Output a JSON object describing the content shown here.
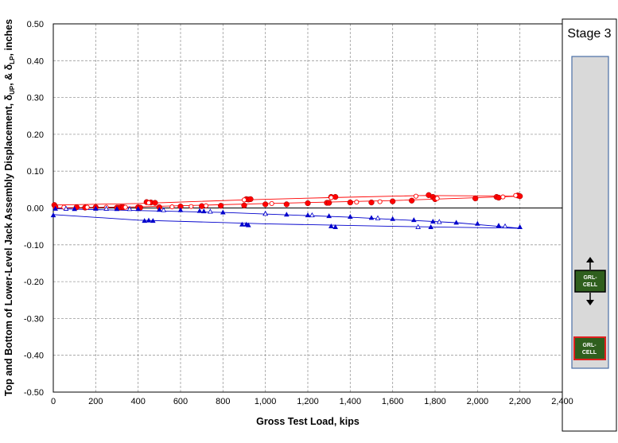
{
  "chart_data": {
    "type": "scatter",
    "xlabel": "Gross Test Load, kips",
    "ylabel_parts": {
      "pre": "Top and Bottom of Lower-Level Jack Assembly Displacement, δ",
      "sub1": "UP",
      "mid": ", & δ",
      "sub2": "LP",
      "post": ", inches"
    },
    "xlim": [
      0,
      2400
    ],
    "ylim": [
      -0.5,
      0.5
    ],
    "x_ticks": [
      0,
      200,
      400,
      600,
      800,
      1000,
      1200,
      1400,
      1600,
      1800,
      2000,
      2200,
      2400
    ],
    "x_tick_labels": [
      "0",
      "200",
      "400",
      "600",
      "800",
      "1,000",
      "1,200",
      "1,400",
      "1,600",
      "1,800",
      "2,000",
      "2,200",
      "2,400"
    ],
    "y_ticks": [
      0.5,
      0.4,
      0.3,
      0.2,
      0.1,
      0.0,
      -0.1,
      -0.2,
      -0.3,
      -0.4,
      -0.5
    ],
    "y_tick_labels": [
      "0.50",
      "0.40",
      "0.30",
      "0.20",
      "0.10",
      "0.00",
      "-0.10",
      "-0.20",
      "-0.30",
      "-0.40",
      "-0.50"
    ],
    "grid": true,
    "series": [
      {
        "color": "#ff0000",
        "marker": "circle-filled",
        "trend": [
          [
            0,
            0.0
          ],
          [
            400,
            0.003
          ],
          [
            1000,
            0.012
          ],
          [
            1600,
            0.02
          ],
          [
            2200,
            0.032
          ]
        ],
        "points": [
          [
            5,
            0.008
          ],
          [
            10,
            0.003
          ],
          [
            110,
            0.002
          ],
          [
            150,
            0.001
          ],
          [
            200,
            0.002
          ],
          [
            300,
            0.001
          ],
          [
            310,
            0.001
          ],
          [
            320,
            0.002
          ],
          [
            330,
            0.002
          ],
          [
            400,
            0.002
          ],
          [
            410,
            0.001
          ],
          [
            440,
            0.016
          ],
          [
            460,
            0.015
          ],
          [
            480,
            0.014
          ],
          [
            500,
            0.002
          ],
          [
            600,
            0.004
          ],
          [
            700,
            0.005
          ],
          [
            790,
            0.006
          ],
          [
            900,
            0.007
          ],
          [
            910,
            0.024
          ],
          [
            920,
            0.023
          ],
          [
            930,
            0.024
          ],
          [
            1000,
            0.01
          ],
          [
            1100,
            0.01
          ],
          [
            1200,
            0.013
          ],
          [
            1290,
            0.014
          ],
          [
            1300,
            0.014
          ],
          [
            1310,
            0.03
          ],
          [
            1330,
            0.03
          ],
          [
            1400,
            0.015
          ],
          [
            1500,
            0.015
          ],
          [
            1600,
            0.018
          ],
          [
            1690,
            0.02
          ],
          [
            1770,
            0.035
          ],
          [
            1790,
            0.03
          ],
          [
            1800,
            0.024
          ],
          [
            1990,
            0.026
          ],
          [
            2090,
            0.03
          ],
          [
            2100,
            0.028
          ],
          [
            2190,
            0.034
          ],
          [
            2200,
            0.032
          ]
        ]
      },
      {
        "color": "#ff0000",
        "marker": "circle-open",
        "trend": [
          [
            0,
            0.008
          ],
          [
            400,
            0.012
          ],
          [
            900,
            0.022
          ],
          [
            1300,
            0.028
          ],
          [
            1750,
            0.034
          ],
          [
            2200,
            0.032
          ]
        ],
        "points": [
          [
            50,
            0.002
          ],
          [
            160,
            0.002
          ],
          [
            250,
            0.002
          ],
          [
            340,
            0.002
          ],
          [
            450,
            0.014
          ],
          [
            560,
            0.003
          ],
          [
            650,
            0.004
          ],
          [
            720,
            0.006
          ],
          [
            900,
            0.022
          ],
          [
            1030,
            0.012
          ],
          [
            1310,
            0.028
          ],
          [
            1430,
            0.016
          ],
          [
            1540,
            0.017
          ],
          [
            1710,
            0.032
          ],
          [
            1810,
            0.026
          ],
          [
            2120,
            0.03
          ],
          [
            2180,
            0.034
          ]
        ]
      },
      {
        "color": "#0000cc",
        "marker": "triangle-filled",
        "trend": [
          [
            0,
            -0.018
          ],
          [
            400,
            -0.033
          ],
          [
            1000,
            -0.043
          ],
          [
            1600,
            -0.05
          ],
          [
            2200,
            -0.055
          ]
        ],
        "points": [
          [
            0,
            -0.02
          ],
          [
            10,
            -0.002
          ],
          [
            100,
            -0.003
          ],
          [
            200,
            -0.002
          ],
          [
            300,
            -0.003
          ],
          [
            400,
            -0.003
          ],
          [
            430,
            -0.035
          ],
          [
            450,
            -0.034
          ],
          [
            470,
            -0.035
          ],
          [
            500,
            -0.005
          ],
          [
            600,
            -0.006
          ],
          [
            690,
            -0.008
          ],
          [
            710,
            -0.009
          ],
          [
            800,
            -0.012
          ],
          [
            890,
            -0.045
          ],
          [
            910,
            -0.045
          ],
          [
            920,
            -0.047
          ],
          [
            1000,
            -0.015
          ],
          [
            1100,
            -0.018
          ],
          [
            1200,
            -0.02
          ],
          [
            1300,
            -0.022
          ],
          [
            1310,
            -0.05
          ],
          [
            1330,
            -0.052
          ],
          [
            1400,
            -0.024
          ],
          [
            1500,
            -0.027
          ],
          [
            1600,
            -0.03
          ],
          [
            1700,
            -0.033
          ],
          [
            1790,
            -0.037
          ],
          [
            1780,
            -0.052
          ],
          [
            1900,
            -0.04
          ],
          [
            2000,
            -0.043
          ],
          [
            2100,
            -0.048
          ],
          [
            2200,
            -0.052
          ]
        ]
      },
      {
        "color": "#0000cc",
        "marker": "triangle-open",
        "trend": [
          [
            0,
            -0.002
          ],
          [
            800,
            -0.012
          ],
          [
            1400,
            -0.025
          ],
          [
            1900,
            -0.04
          ],
          [
            2200,
            -0.055
          ]
        ],
        "points": [
          [
            60,
            -0.002
          ],
          [
            250,
            -0.002
          ],
          [
            360,
            -0.003
          ],
          [
            520,
            -0.006
          ],
          [
            740,
            -0.01
          ],
          [
            1000,
            -0.016
          ],
          [
            1220,
            -0.02
          ],
          [
            1530,
            -0.028
          ],
          [
            1720,
            -0.052
          ],
          [
            1820,
            -0.038
          ],
          [
            2130,
            -0.05
          ]
        ]
      }
    ]
  },
  "side_panel": {
    "title": "Stage 3",
    "upper_cell": {
      "line1": "GRL-",
      "line2": "CELL"
    },
    "lower_cell": {
      "line1": "GRL-",
      "line2": "CELL"
    }
  }
}
